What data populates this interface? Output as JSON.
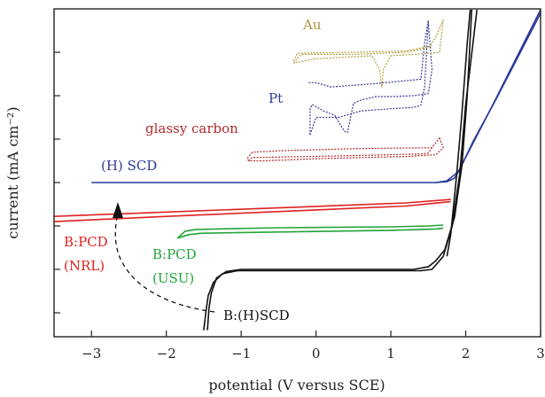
{
  "chart_data": {
    "type": "line",
    "title": "",
    "xlabel": "potential (V versus SCE)",
    "ylabel": "current (mA cm⁻²)",
    "xlim": [
      -3.5,
      3
    ],
    "xticks": [
      -3,
      -2,
      -1,
      0,
      1,
      2,
      3
    ],
    "yticks_labeled": false,
    "grid": false,
    "legend": "none (series labelled directly on plot)",
    "series": [
      {
        "name": "(H) SCD",
        "color": "#2b3a9a",
        "loops": [
          [
            [
              -3.0,
              0
            ],
            [
              1.6,
              0
            ],
            [
              1.75,
              0.02
            ],
            [
              1.85,
              0.1
            ],
            [
              1.92,
              0.3
            ],
            [
              2.1,
              0.95
            ],
            [
              2.4,
              1.9
            ],
            [
              2.7,
              2.9
            ],
            [
              3.0,
              3.9
            ]
          ],
          [
            [
              1.6,
              0
            ],
            [
              1.75,
              0.04
            ],
            [
              1.9,
              0.25
            ],
            [
              2.05,
              0.75
            ],
            [
              2.35,
              1.75
            ],
            [
              2.7,
              2.95
            ],
            [
              3.0,
              4.0
            ]
          ]
        ]
      },
      {
        "name": "B:PCD (NRL)",
        "color": "#e02020",
        "loops": [
          [
            [
              -3.5,
              -0.78
            ],
            [
              -2.0,
              -0.68
            ],
            [
              0.0,
              -0.55
            ],
            [
              1.2,
              -0.47
            ],
            [
              1.8,
              -0.39
            ]
          ],
          [
            [
              -3.5,
              -0.9
            ],
            [
              -2.0,
              -0.78
            ],
            [
              0.0,
              -0.63
            ],
            [
              1.2,
              -0.54
            ],
            [
              1.8,
              -0.44
            ]
          ]
        ]
      },
      {
        "name": "B:PCD (USU)",
        "color": "#22a53a",
        "loops": [
          [
            [
              -1.85,
              -1.28
            ],
            [
              -1.75,
              -1.12
            ],
            [
              -1.6,
              -1.08
            ],
            [
              -0.5,
              -1.04
            ],
            [
              1.0,
              -1.02
            ],
            [
              1.5,
              -1.0
            ],
            [
              1.7,
              -0.98
            ]
          ],
          [
            [
              -1.85,
              -1.28
            ],
            [
              -1.7,
              -1.2
            ],
            [
              -1.55,
              -1.17
            ],
            [
              -1.0,
              -1.15
            ],
            [
              1.0,
              -1.1
            ],
            [
              1.6,
              -1.07
            ],
            [
              1.7,
              -1.05
            ]
          ]
        ]
      },
      {
        "name": "B:(H)SCD",
        "color": "#111111",
        "loops": [
          [
            [
              -1.45,
              -3.4
            ],
            [
              -1.43,
              -2.9
            ],
            [
              -1.4,
              -2.55
            ],
            [
              -1.33,
              -2.2
            ],
            [
              -1.2,
              -2.05
            ],
            [
              -1.0,
              -2.0
            ],
            [
              1.3,
              -2.0
            ],
            [
              1.5,
              -1.94
            ],
            [
              1.6,
              -1.8
            ],
            [
              1.72,
              -1.55
            ],
            [
              1.85,
              -0.8
            ],
            [
              1.95,
              0.4
            ],
            [
              2.02,
              2.0
            ],
            [
              2.08,
              4.0
            ]
          ],
          [
            [
              -1.5,
              -3.4
            ],
            [
              -1.47,
              -2.95
            ],
            [
              -1.44,
              -2.6
            ],
            [
              -1.37,
              -2.3
            ],
            [
              -1.25,
              -2.1
            ],
            [
              -1.05,
              -2.03
            ],
            [
              1.4,
              -2.03
            ],
            [
              1.55,
              -2.0
            ],
            [
              1.7,
              -1.7
            ],
            [
              1.82,
              -1.0
            ],
            [
              1.92,
              0.2
            ],
            [
              2.0,
              1.8
            ],
            [
              2.15,
              4.0
            ]
          ],
          [
            [
              1.75,
              -1.7
            ],
            [
              1.8,
              -1.2
            ],
            [
              1.88,
              0.2
            ],
            [
              1.95,
              1.6
            ],
            [
              2.02,
              3.2
            ],
            [
              2.06,
              4.0
            ]
          ]
        ]
      },
      {
        "name": "glassy carbon",
        "color": "#b02a2a",
        "loops": [
          [
            [
              -0.9,
              0.5
            ],
            [
              -0.85,
              0.58
            ],
            [
              -0.7,
              0.58
            ],
            [
              0.5,
              0.62
            ],
            [
              1.4,
              0.66
            ],
            [
              1.5,
              0.68
            ],
            [
              1.55,
              0.8
            ],
            [
              1.65,
              1.03
            ]
          ],
          [
            [
              1.65,
              1.03
            ],
            [
              1.7,
              0.8
            ],
            [
              1.6,
              0.64
            ],
            [
              1.2,
              0.6
            ],
            [
              0.0,
              0.55
            ],
            [
              -0.7,
              0.5
            ],
            [
              -0.9,
              0.5
            ]
          ],
          [
            [
              -0.9,
              0.5
            ],
            [
              -0.92,
              0.56
            ],
            [
              -0.85,
              0.7
            ],
            [
              -0.5,
              0.73
            ],
            [
              0.5,
              0.78
            ],
            [
              1.4,
              0.8
            ],
            [
              1.55,
              0.8
            ]
          ]
        ]
      },
      {
        "name": "Pt",
        "color": "#3a3a9e",
        "loops": [
          [
            [
              -0.08,
              1.1
            ],
            [
              0.0,
              1.5
            ],
            [
              0.3,
              1.5
            ],
            [
              0.6,
              1.65
            ],
            [
              1.0,
              1.7
            ],
            [
              1.3,
              1.73
            ],
            [
              1.4,
              1.78
            ],
            [
              1.45,
              2.2
            ],
            [
              1.5,
              3.7
            ]
          ],
          [
            [
              1.5,
              3.7
            ],
            [
              1.55,
              2.6
            ],
            [
              1.5,
              2.05
            ],
            [
              1.3,
              2.0
            ],
            [
              1.0,
              1.98
            ],
            [
              0.8,
              1.98
            ],
            [
              0.6,
              1.9
            ],
            [
              0.5,
              1.82
            ],
            [
              0.42,
              1.15
            ],
            [
              0.38,
              1.18
            ],
            [
              0.25,
              1.55
            ],
            [
              0.1,
              1.65
            ],
            [
              -0.05,
              1.8
            ],
            [
              -0.08,
              1.7
            ],
            [
              -0.08,
              1.1
            ]
          ],
          [
            [
              -0.1,
              2.3
            ],
            [
              0.0,
              2.3
            ],
            [
              0.2,
              2.2
            ],
            [
              0.8,
              2.28
            ],
            [
              1.4,
              2.38
            ],
            [
              1.45,
              3.2
            ],
            [
              1.5,
              3.75
            ]
          ]
        ]
      },
      {
        "name": "Au",
        "color": "#b0a040",
        "loops": [
          [
            [
              -0.3,
              2.75
            ],
            [
              -0.2,
              2.95
            ],
            [
              0.5,
              2.95
            ],
            [
              1.2,
              3.0
            ],
            [
              1.5,
              3.1
            ],
            [
              1.6,
              3.35
            ],
            [
              1.7,
              3.75
            ]
          ],
          [
            [
              1.7,
              3.75
            ],
            [
              1.65,
              3.0
            ],
            [
              1.3,
              2.95
            ],
            [
              1.0,
              2.92
            ],
            [
              0.9,
              2.6
            ],
            [
              0.88,
              2.2
            ],
            [
              0.85,
              2.6
            ],
            [
              0.75,
              2.92
            ],
            [
              0.0,
              2.85
            ],
            [
              -0.3,
              2.75
            ]
          ],
          [
            [
              -0.3,
              2.8
            ],
            [
              -0.25,
              2.98
            ],
            [
              0.5,
              3.0
            ],
            [
              1.2,
              3.03
            ],
            [
              1.55,
              3.15
            ]
          ]
        ]
      }
    ],
    "annotations": [
      {
        "text": "Au",
        "color": "#a89a3a"
      },
      {
        "text": "Pt",
        "color": "#2b3a9a"
      },
      {
        "text": "glassy carbon",
        "color": "#b02a2a"
      },
      {
        "text": "(H) SCD",
        "color": "#2b3a9a"
      },
      {
        "text": "B:PCD",
        "color": "#e02020"
      },
      {
        "text": "(NRL)",
        "color": "#e02020"
      },
      {
        "text": "B:PCD",
        "color": "#22a53a"
      },
      {
        "text": "(USU)",
        "color": "#22a53a"
      },
      {
        "text": "B:(H)SCD",
        "color": "#111111"
      }
    ]
  }
}
